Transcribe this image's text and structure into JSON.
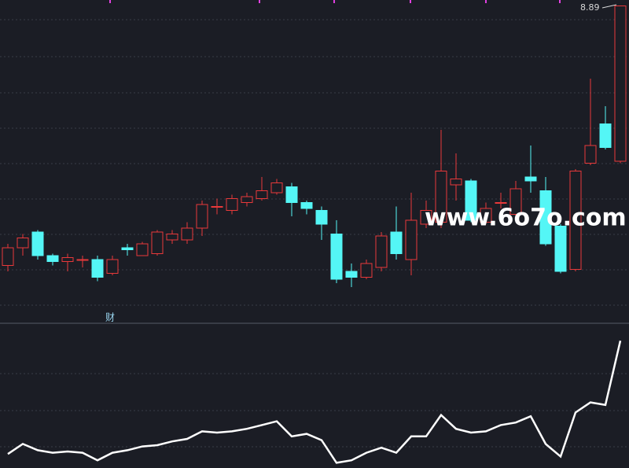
{
  "chart_data": [
    {
      "type": "candlestick",
      "up_color": "#e8393a",
      "down_color": "#54f6f6",
      "ylim": [
        7.28,
        8.92
      ],
      "annotations": [
        "8.89",
        "财"
      ],
      "watermark": "www.6o7o.com",
      "open": [
        7.57,
        7.66,
        7.74,
        7.62,
        7.59,
        7.6,
        7.6,
        7.53,
        7.66,
        7.62,
        7.63,
        7.7,
        7.7,
        7.76,
        7.87,
        7.85,
        7.89,
        7.91,
        7.94,
        7.97,
        7.89,
        7.85,
        7.73,
        7.54,
        7.51,
        7.56,
        7.74,
        7.6,
        7.78,
        7.79,
        7.98,
        8.0,
        7.79,
        7.89,
        7.83,
        8.02,
        7.95,
        7.77,
        7.55,
        8.09,
        8.29,
        8.1
      ],
      "high": [
        7.68,
        7.73,
        7.75,
        7.63,
        7.63,
        7.62,
        7.62,
        7.62,
        7.68,
        7.69,
        7.75,
        7.75,
        7.79,
        7.9,
        7.91,
        7.93,
        7.94,
        8.02,
        8.01,
        7.99,
        7.9,
        7.87,
        7.8,
        7.58,
        7.6,
        7.74,
        7.87,
        7.94,
        7.9,
        8.26,
        8.14,
        8.01,
        7.89,
        7.94,
        8.0,
        8.18,
        8.02,
        7.78,
        8.06,
        8.52,
        8.38,
        8.89
      ],
      "low": [
        7.54,
        7.62,
        7.6,
        7.57,
        7.54,
        7.56,
        7.49,
        7.52,
        7.62,
        7.62,
        7.62,
        7.68,
        7.68,
        7.72,
        7.83,
        7.83,
        7.87,
        7.9,
        7.93,
        7.82,
        7.83,
        7.7,
        7.48,
        7.46,
        7.5,
        7.54,
        7.6,
        7.52,
        7.76,
        7.76,
        7.9,
        7.79,
        7.78,
        7.86,
        7.82,
        7.94,
        7.67,
        7.53,
        7.54,
        8.08,
        8.16,
        8.09
      ],
      "close": [
        7.66,
        7.71,
        7.62,
        7.59,
        7.61,
        7.6,
        7.51,
        7.6,
        7.65,
        7.68,
        7.74,
        7.73,
        7.76,
        7.88,
        7.87,
        7.91,
        7.92,
        7.95,
        7.99,
        7.89,
        7.86,
        7.78,
        7.5,
        7.51,
        7.58,
        7.72,
        7.63,
        7.8,
        7.85,
        8.05,
        8.01,
        7.8,
        7.86,
        7.89,
        7.96,
        8.0,
        7.68,
        7.54,
        8.05,
        8.18,
        8.17,
        8.89
      ]
    },
    {
      "type": "line",
      "color": "#ffffff",
      "ylim": [
        0,
        100
      ],
      "values": [
        8,
        16,
        11,
        9,
        10,
        9,
        3,
        9,
        11,
        14,
        15,
        18,
        20,
        26,
        25,
        26,
        28,
        31,
        34,
        22,
        24,
        19,
        1,
        3,
        9,
        13,
        9,
        22,
        22,
        39,
        28,
        25,
        26,
        31,
        33,
        38,
        16,
        6,
        41,
        49,
        47,
        98
      ]
    }
  ]
}
